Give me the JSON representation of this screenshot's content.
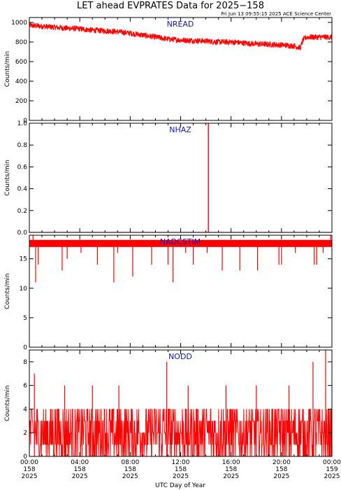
{
  "title": "LET ahead EVPRATES Data for 2025−158",
  "timestamp": "Fri Jun 13 09:55:15 2025 ACE Science Center",
  "colors": {
    "series": "#ff0000",
    "panel_label": "#1414c8",
    "axis": "#000000"
  },
  "chart_data": {
    "type": "line",
    "xlabel": "UTC Day of Year",
    "x_range": [
      "2025-158 00:00",
      "2025-159 00:00"
    ],
    "x_ticks": [
      {
        "time": "00:00",
        "doy": "158",
        "year": "2025"
      },
      {
        "time": "04:00",
        "doy": "158",
        "year": "2025"
      },
      {
        "time": "08:00",
        "doy": "158",
        "year": "2025"
      },
      {
        "time": "12:00",
        "doy": "158",
        "year": "2025"
      },
      {
        "time": "16:00",
        "doy": "158",
        "year": "2025"
      },
      {
        "time": "20:00",
        "doy": "158",
        "year": "2025"
      },
      {
        "time": "00:00",
        "doy": "159",
        "year": "2025"
      }
    ],
    "panels": [
      {
        "name": "NREAD",
        "ylabel": "Counts/min",
        "ylim": [
          0,
          1050
        ],
        "yticks": [
          0,
          200,
          400,
          600,
          800,
          1000
        ],
        "ytick_labels": [
          "0",
          "200",
          "400",
          "600",
          "800",
          "1000"
        ],
        "x_hours": [
          0,
          1,
          2,
          3,
          4,
          5,
          6,
          7,
          8,
          9,
          10,
          11,
          12,
          13,
          14,
          15,
          16,
          17,
          18,
          19,
          20,
          21,
          21.5,
          21.7,
          22,
          23,
          24
        ],
        "values": [
          970,
          960,
          950,
          940,
          935,
          920,
          915,
          905,
          890,
          870,
          850,
          830,
          820,
          815,
          810,
          800,
          800,
          790,
          780,
          775,
          770,
          760,
          740,
          820,
          850,
          850,
          850
        ]
      },
      {
        "name": "NHAZ",
        "ylabel": "Counts/min",
        "ylim": [
          0,
          1.0
        ],
        "yticks": [
          0,
          0.2,
          0.4,
          0.6,
          0.8,
          1.0
        ],
        "ytick_labels": [
          "0.0",
          "0.2",
          "0.4",
          "0.6",
          "0.8",
          "1.0"
        ],
        "baseline": 0,
        "events": [
          {
            "hour": 14.2,
            "value": 1.0
          }
        ]
      },
      {
        "name": "NADCSTIM",
        "ylabel": "Counts/min",
        "ylim": [
          0,
          19
        ],
        "yticks": [
          0,
          5,
          10,
          15
        ],
        "ytick_labels": [
          "0",
          "5",
          "10",
          "15"
        ],
        "baseline": 17.6,
        "band": [
          17,
          18.2
        ],
        "upper_spikes": [
          {
            "hour": 0.3,
            "value": 19
          },
          {
            "hour": 23.9,
            "value": 19
          }
        ],
        "dips": [
          {
            "hour": 0.5,
            "value": 11
          },
          {
            "hour": 0.7,
            "value": 14
          },
          {
            "hour": 2.6,
            "value": 13
          },
          {
            "hour": 3.0,
            "value": 15
          },
          {
            "hour": 4.1,
            "value": 16
          },
          {
            "hour": 5.4,
            "value": 14
          },
          {
            "hour": 6.7,
            "value": 11
          },
          {
            "hour": 7.0,
            "value": 16
          },
          {
            "hour": 8.2,
            "value": 12
          },
          {
            "hour": 9.7,
            "value": 14
          },
          {
            "hour": 11.0,
            "value": 14
          },
          {
            "hour": 11.4,
            "value": 11
          },
          {
            "hour": 12.4,
            "value": 16
          },
          {
            "hour": 13.0,
            "value": 14
          },
          {
            "hour": 14.1,
            "value": 16
          },
          {
            "hour": 15.3,
            "value": 13
          },
          {
            "hour": 16.7,
            "value": 13
          },
          {
            "hour": 18.1,
            "value": 13
          },
          {
            "hour": 19.8,
            "value": 14
          },
          {
            "hour": 20.0,
            "value": 14
          },
          {
            "hour": 21.1,
            "value": 16
          },
          {
            "hour": 22.6,
            "value": 14
          },
          {
            "hour": 22.8,
            "value": 14
          },
          {
            "hour": 23.3,
            "value": 16
          }
        ]
      },
      {
        "name": "NODD",
        "ylabel": "Counts/min",
        "ylim": [
          0,
          9
        ],
        "yticks": [
          0,
          2,
          4,
          6,
          8
        ],
        "ytick_labels": [
          "0",
          "2",
          "4",
          "6",
          "8"
        ],
        "typical_range": [
          0,
          4
        ],
        "peaks": [
          {
            "hour": 0.4,
            "value": 7
          },
          {
            "hour": 2.8,
            "value": 6
          },
          {
            "hour": 5.0,
            "value": 6
          },
          {
            "hour": 7.1,
            "value": 6
          },
          {
            "hour": 10.9,
            "value": 8
          },
          {
            "hour": 12.6,
            "value": 6
          },
          {
            "hour": 15.6,
            "value": 6
          },
          {
            "hour": 18.0,
            "value": 6
          },
          {
            "hour": 20.6,
            "value": 6
          },
          {
            "hour": 22.5,
            "value": 8
          },
          {
            "hour": 23.5,
            "value": 9
          }
        ]
      }
    ]
  }
}
